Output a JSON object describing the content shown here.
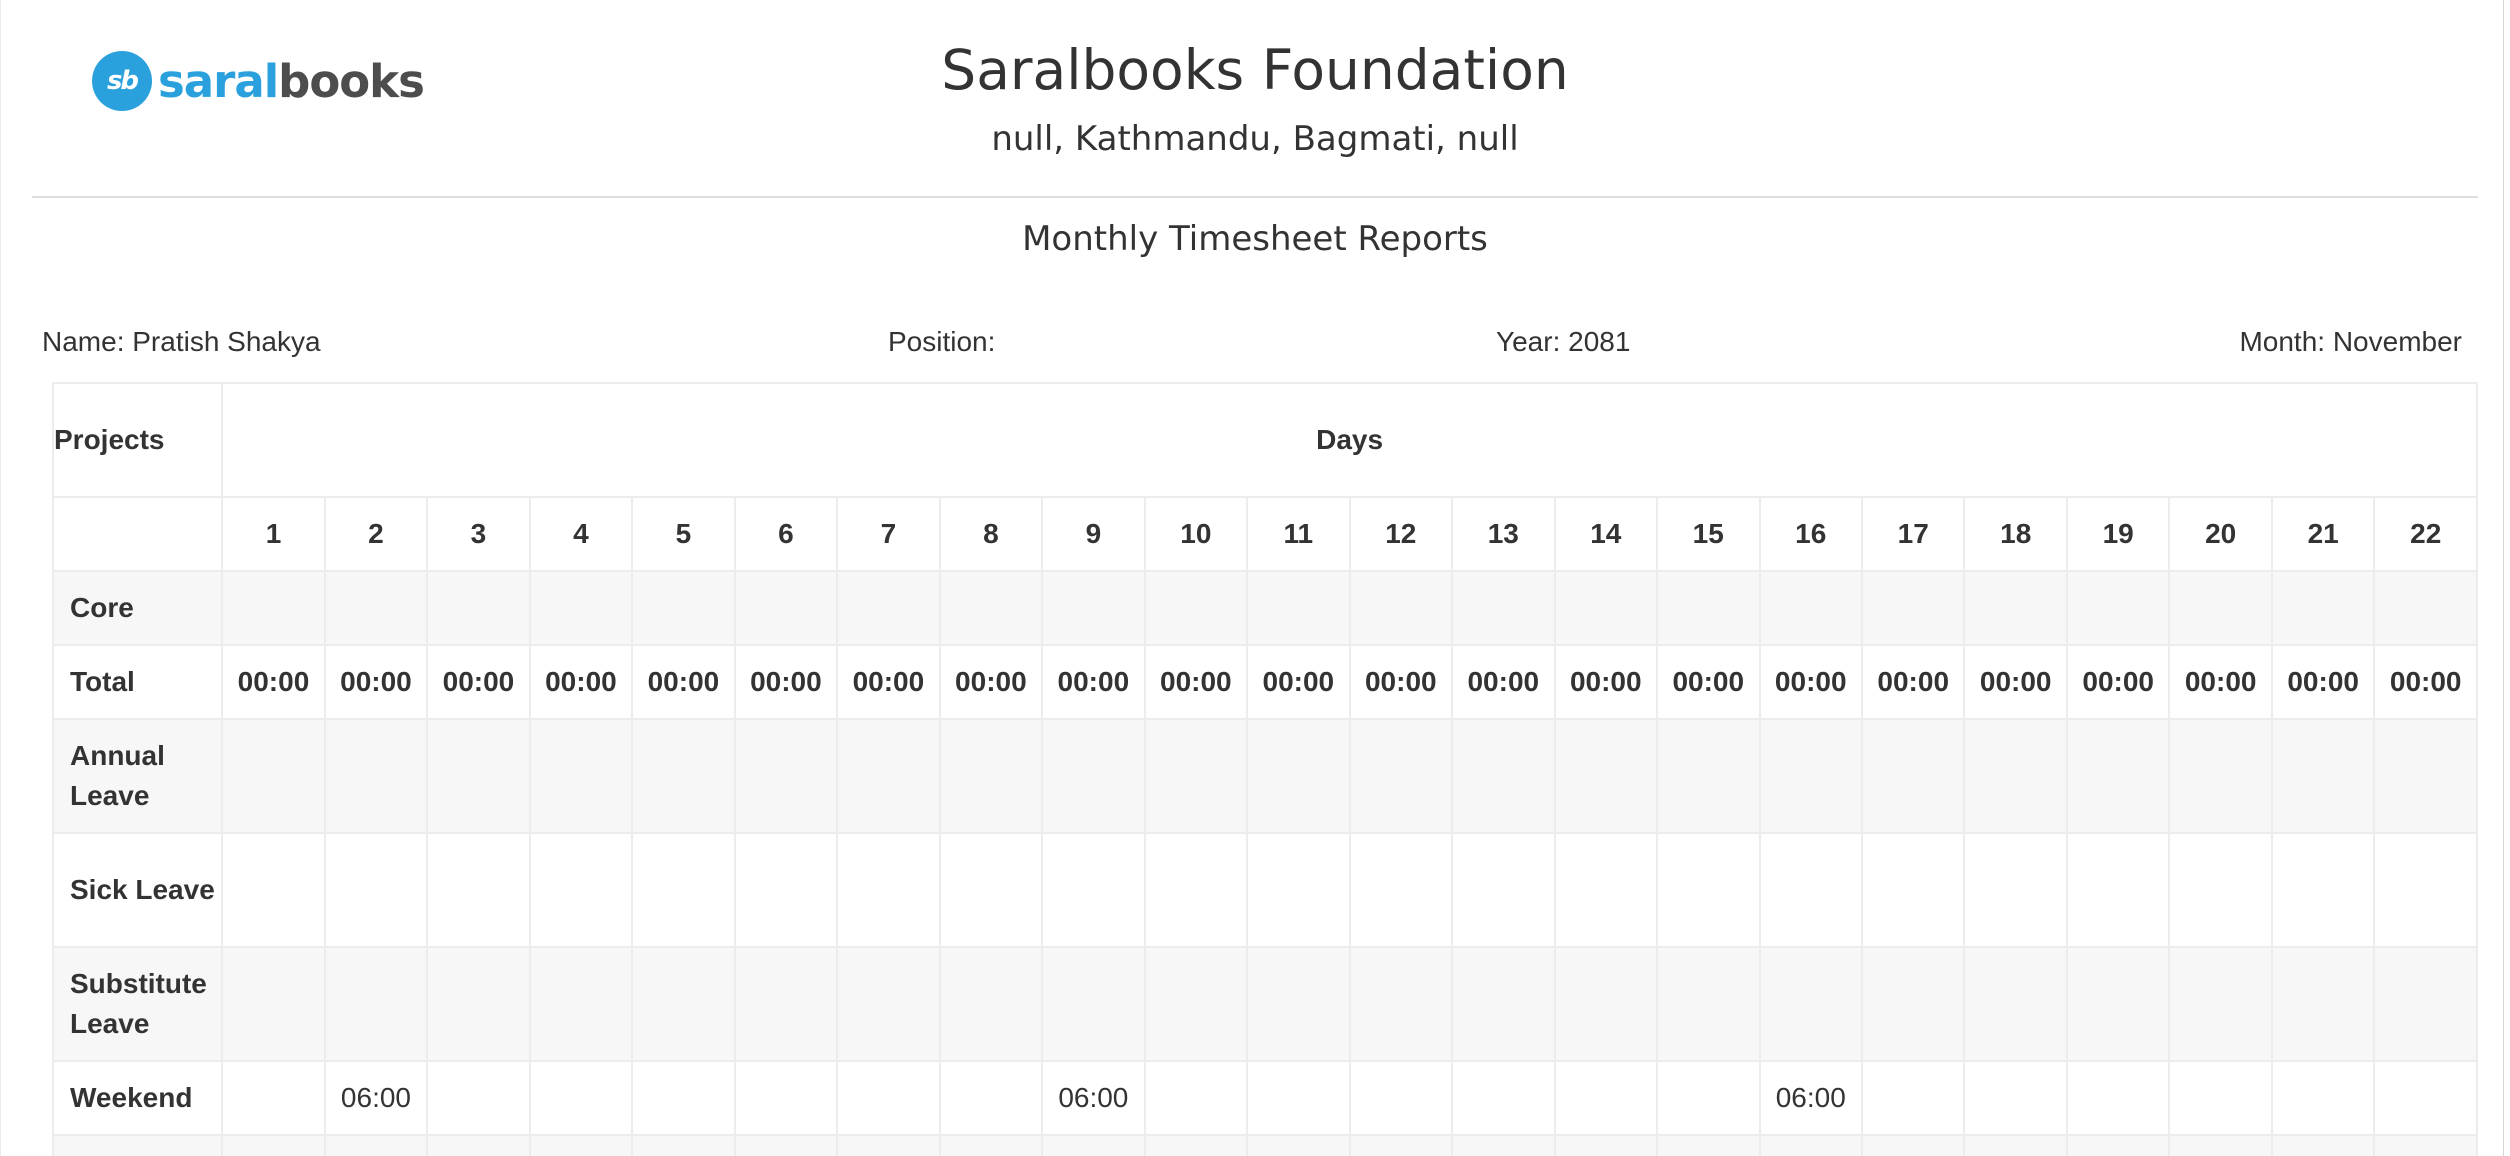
{
  "logo": {
    "mark": "sb",
    "word_a": "saral",
    "word_b": "books"
  },
  "header": {
    "org_name": "Saralbooks Foundation",
    "address": "null, Kathmandu, Bagmati, null",
    "report_title": "Monthly Timesheet Reports"
  },
  "meta": {
    "name": "Name: Pratish Shakya",
    "position": "Position:",
    "year": "Year: 2081",
    "month": "Month: November"
  },
  "table": {
    "projects_header": "Projects",
    "days_header": "Days",
    "days": [
      "1",
      "2",
      "3",
      "4",
      "5",
      "6",
      "7",
      "8",
      "9",
      "10",
      "11",
      "12",
      "13",
      "14",
      "15",
      "16",
      "17",
      "18",
      "19",
      "20",
      "21",
      "22"
    ],
    "rows": [
      {
        "label": "Core",
        "values": [
          "",
          "",
          "",
          "",
          "",
          "",
          "",
          "",
          "",
          "",
          "",
          "",
          "",
          "",
          "",
          "",
          "",
          "",
          "",
          "",
          "",
          ""
        ]
      },
      {
        "label": "Total",
        "values": [
          "00:00",
          "00:00",
          "00:00",
          "00:00",
          "00:00",
          "00:00",
          "00:00",
          "00:00",
          "00:00",
          "00:00",
          "00:00",
          "00:00",
          "00:00",
          "00:00",
          "00:00",
          "00:00",
          "00:00",
          "00:00",
          "00:00",
          "00:00",
          "00:00",
          "00:00"
        ]
      },
      {
        "label": "Annual Leave",
        "values": [
          "",
          "",
          "",
          "",
          "",
          "",
          "",
          "",
          "",
          "",
          "",
          "",
          "",
          "",
          "",
          "",
          "",
          "",
          "",
          "",
          "",
          ""
        ]
      },
      {
        "label": "Sick Leave",
        "values": [
          "",
          "",
          "",
          "",
          "",
          "",
          "",
          "",
          "",
          "",
          "",
          "",
          "",
          "",
          "",
          "",
          "",
          "",
          "",
          "",
          "",
          ""
        ]
      },
      {
        "label": "Substitute Leave",
        "values": [
          "",
          "",
          "",
          "",
          "",
          "",
          "",
          "",
          "",
          "",
          "",
          "",
          "",
          "",
          "",
          "",
          "",
          "",
          "",
          "",
          "",
          ""
        ]
      },
      {
        "label": "Weekend",
        "values": [
          "",
          "06:00",
          "",
          "",
          "",
          "",
          "",
          "",
          "06:00",
          "",
          "",
          "",
          "",
          "",
          "",
          "06:00",
          "",
          "",
          "",
          "",
          "",
          ""
        ]
      },
      {
        "label": "",
        "values": [
          "",
          "",
          "",
          "",
          "",
          "",
          "",
          "",
          "",
          "",
          "",
          "",
          "",
          "",
          "",
          "",
          "",
          "",
          "",
          "",
          "",
          ""
        ]
      }
    ]
  },
  "colors": {
    "brand_blue": "#2aa1dd",
    "brand_gray": "#4d4d4d",
    "row_shade": "#f7f7f7",
    "grid": "#ececec"
  }
}
